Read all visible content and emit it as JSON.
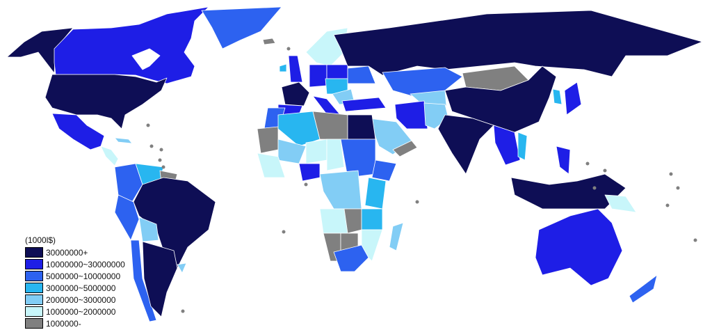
{
  "legend": {
    "unit": "(1000l$)",
    "items": [
      {
        "label": "30000000+",
        "color": "#0e0e55"
      },
      {
        "label": "10000000~30000000",
        "color": "#1e1ee6"
      },
      {
        "label": "5000000~10000000",
        "color": "#2d62f0"
      },
      {
        "label": "3000000~5000000",
        "color": "#28b6f0"
      },
      {
        "label": "2000000~3000000",
        "color": "#82cdf5"
      },
      {
        "label": "1000000~2000000",
        "color": "#c8f6fa"
      },
      {
        "label": "1000000-",
        "color": "#808080"
      }
    ]
  }
}
